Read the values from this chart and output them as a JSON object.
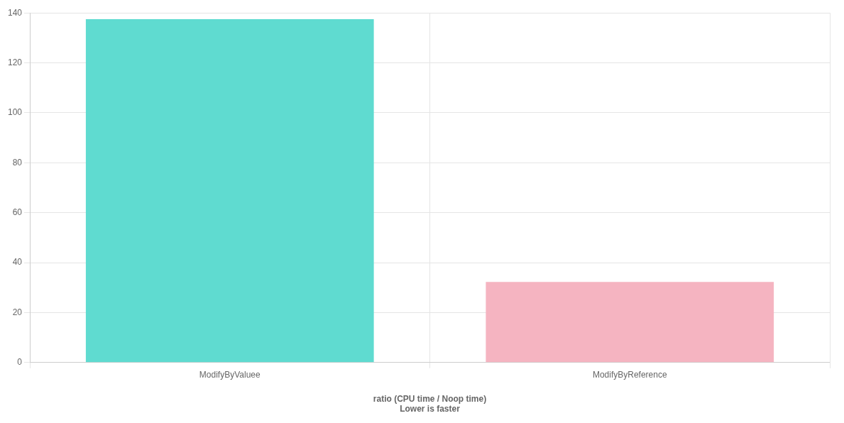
{
  "chart_data": {
    "type": "bar",
    "categories": [
      "ModifyByValuee",
      "ModifyByReference"
    ],
    "values": [
      137.5,
      32.3
    ],
    "colors": [
      "#5fdbd0",
      "#f5b4c1"
    ],
    "xlabel": "ratio (CPU time / Noop time)",
    "annotations": [
      "Lower is faster"
    ],
    "ylim": [
      0,
      140
    ],
    "yticks": [
      0,
      20,
      40,
      60,
      80,
      100,
      120,
      140
    ],
    "grid": true,
    "legend": false
  }
}
